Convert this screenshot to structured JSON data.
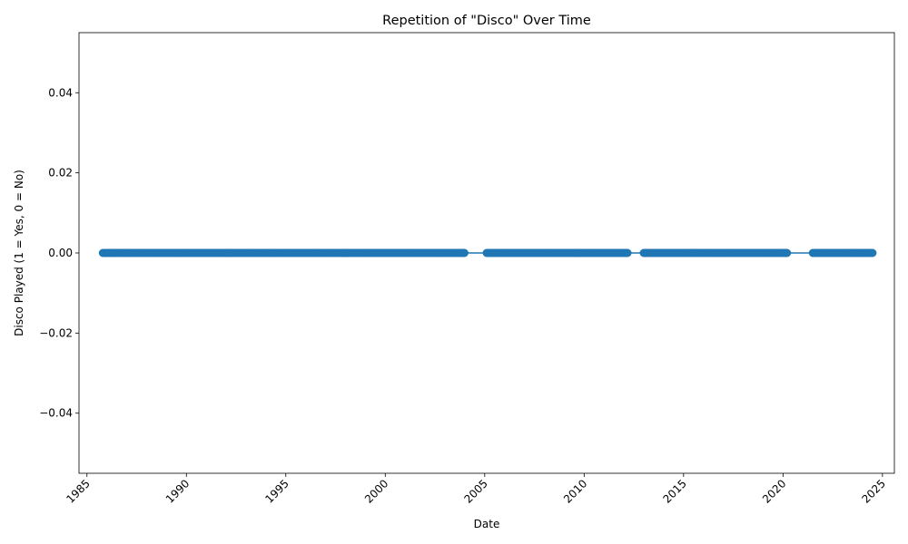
{
  "chart_data": {
    "type": "scatter",
    "title": "Repetition of \"Disco\" Over Time",
    "xlabel": "Date",
    "ylabel": "Disco Played (1 = Yes, 0 = No)",
    "xlim": [
      1984.6,
      2025.6
    ],
    "ylim": [
      -0.055,
      0.055
    ],
    "x_ticks": [
      1985,
      1990,
      1995,
      2000,
      2005,
      2010,
      2015,
      2020,
      2025
    ],
    "x_tick_labels": [
      "1985",
      "1990",
      "1995",
      "2000",
      "2005",
      "2010",
      "2015",
      "2020",
      "2025"
    ],
    "y_ticks": [
      -0.04,
      -0.02,
      0.0,
      0.02,
      0.04
    ],
    "y_tick_labels": [
      "−0.04",
      "−0.02",
      "0.00",
      "0.02",
      "0.04"
    ],
    "grid": false,
    "line_color": "#1f77b4",
    "marker_color": "#1f77b4",
    "series": [
      {
        "segments": [
          {
            "start": 1985.8,
            "end": 2004.0
          },
          {
            "start": 2005.1,
            "end": 2012.2
          },
          {
            "start": 2013.0,
            "end": 2020.2
          },
          {
            "start": 2021.5,
            "end": 2024.5
          }
        ],
        "y": 0
      }
    ]
  }
}
